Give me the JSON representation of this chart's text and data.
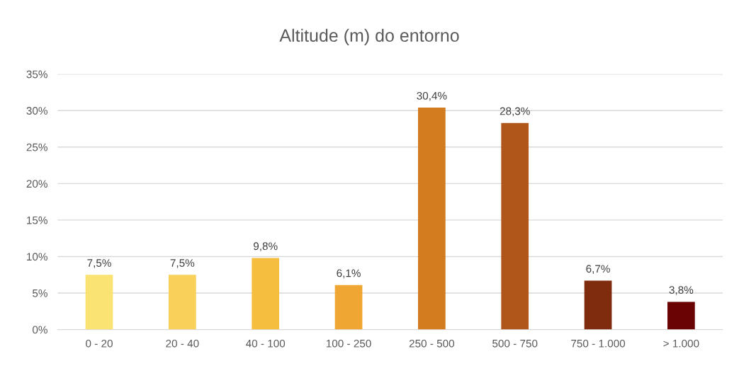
{
  "chart_data": {
    "type": "bar",
    "title": "Altitude (m) do entorno",
    "categories": [
      "0 - 20",
      "20 - 40",
      "40 - 100",
      "100 - 250",
      "250 - 500",
      "500 - 750",
      "750 - 1.000",
      "> 1.000"
    ],
    "values": [
      7.5,
      7.5,
      9.8,
      6.1,
      30.4,
      28.3,
      6.7,
      3.8
    ],
    "colors": [
      "#fae372",
      "#f8d05a",
      "#f5be3e",
      "#f0a632",
      "#d27b1f",
      "#b1561a",
      "#7e2c0d",
      "#6a0303"
    ],
    "value_labels": [
      "7,5%",
      "7,5%",
      "9,8%",
      "6,1%",
      "30,4%",
      "28,3%",
      "6,7%",
      "3,8%"
    ],
    "ylim": [
      0,
      35
    ],
    "yticks": [
      {
        "value": 0,
        "label": "0%"
      },
      {
        "value": 5,
        "label": "5%"
      },
      {
        "value": 10,
        "label": "10%"
      },
      {
        "value": 15,
        "label": "15%"
      },
      {
        "value": 20,
        "label": "20%"
      },
      {
        "value": 25,
        "label": "25%"
      },
      {
        "value": 30,
        "label": "30%"
      },
      {
        "value": 35,
        "label": "35%"
      }
    ],
    "grid": "y"
  }
}
